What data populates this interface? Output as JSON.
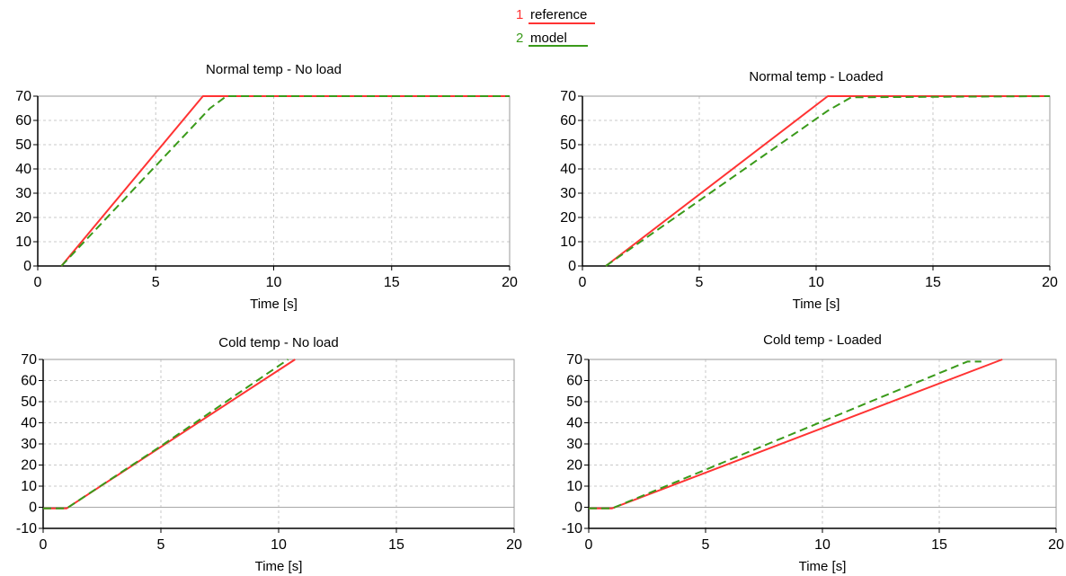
{
  "legend": {
    "items": [
      {
        "index": "1",
        "label": "reference",
        "color": "#ff3333",
        "dash": "solid"
      },
      {
        "index": "2",
        "label": "model",
        "color": "#3a9a1a",
        "dash": "dashed"
      }
    ]
  },
  "chart_data": [
    {
      "type": "line",
      "title": "Normal temp - No load",
      "xlabel": "Time [s]",
      "ylabel": "",
      "xlim": [
        0,
        20
      ],
      "ylim": [
        0,
        70
      ],
      "xticks": [
        0,
        5,
        10,
        15,
        20
      ],
      "yticks": [
        0,
        10,
        20,
        30,
        40,
        50,
        60,
        70
      ],
      "grid": true,
      "series": [
        {
          "name": "reference",
          "color": "#ff3333",
          "dash": "solid",
          "x": [
            1,
            7,
            20
          ],
          "y": [
            0,
            70,
            70
          ]
        },
        {
          "name": "model",
          "color": "#3a9a1a",
          "dash": "dashed",
          "x": [
            1,
            7.3,
            8,
            20
          ],
          "y": [
            0,
            65,
            70,
            70
          ]
        }
      ]
    },
    {
      "type": "line",
      "title": "Normal temp - Loaded",
      "xlabel": "Time [s]",
      "ylabel": "",
      "xlim": [
        0,
        20
      ],
      "ylim": [
        0,
        70
      ],
      "xticks": [
        0,
        5,
        10,
        15,
        20
      ],
      "yticks": [
        0,
        10,
        20,
        30,
        40,
        50,
        60,
        70
      ],
      "grid": true,
      "series": [
        {
          "name": "reference",
          "color": "#ff3333",
          "dash": "solid",
          "x": [
            1,
            10.5,
            20
          ],
          "y": [
            0,
            70,
            70
          ]
        },
        {
          "name": "model",
          "color": "#3a9a1a",
          "dash": "dashed",
          "x": [
            1,
            10.5,
            11.5,
            20
          ],
          "y": [
            0,
            64,
            69.5,
            70
          ]
        }
      ]
    },
    {
      "type": "line",
      "title": "Cold temp - No load",
      "xlabel": "Time [s]",
      "ylabel": "",
      "xlim": [
        0,
        20
      ],
      "ylim": [
        -10,
        70
      ],
      "xticks": [
        0,
        5,
        10,
        15,
        20
      ],
      "yticks": [
        -10,
        0,
        10,
        20,
        30,
        40,
        50,
        60,
        70
      ],
      "grid": true,
      "series": [
        {
          "name": "reference",
          "color": "#ff3333",
          "dash": "solid",
          "x": [
            0,
            1,
            10.7
          ],
          "y": [
            -0.5,
            -0.5,
            70
          ]
        },
        {
          "name": "model",
          "color": "#3a9a1a",
          "dash": "dashed",
          "x": [
            0,
            1,
            5,
            10.4
          ],
          "y": [
            -0.5,
            -0.5,
            29,
            70
          ]
        }
      ]
    },
    {
      "type": "line",
      "title": "Cold temp - Loaded",
      "xlabel": "Time [s]",
      "ylabel": "",
      "xlim": [
        0,
        20
      ],
      "ylim": [
        -10,
        70
      ],
      "xticks": [
        0,
        5,
        10,
        15,
        20
      ],
      "yticks": [
        -10,
        0,
        10,
        20,
        30,
        40,
        50,
        60,
        70
      ],
      "grid": true,
      "series": [
        {
          "name": "reference",
          "color": "#ff3333",
          "dash": "solid",
          "x": [
            0,
            1,
            17.7
          ],
          "y": [
            -0.5,
            -0.5,
            70
          ]
        },
        {
          "name": "model",
          "color": "#3a9a1a",
          "dash": "dashed",
          "x": [
            0,
            1,
            16.2,
            16.8
          ],
          "y": [
            -0.5,
            -0.5,
            69,
            69
          ]
        }
      ]
    }
  ]
}
